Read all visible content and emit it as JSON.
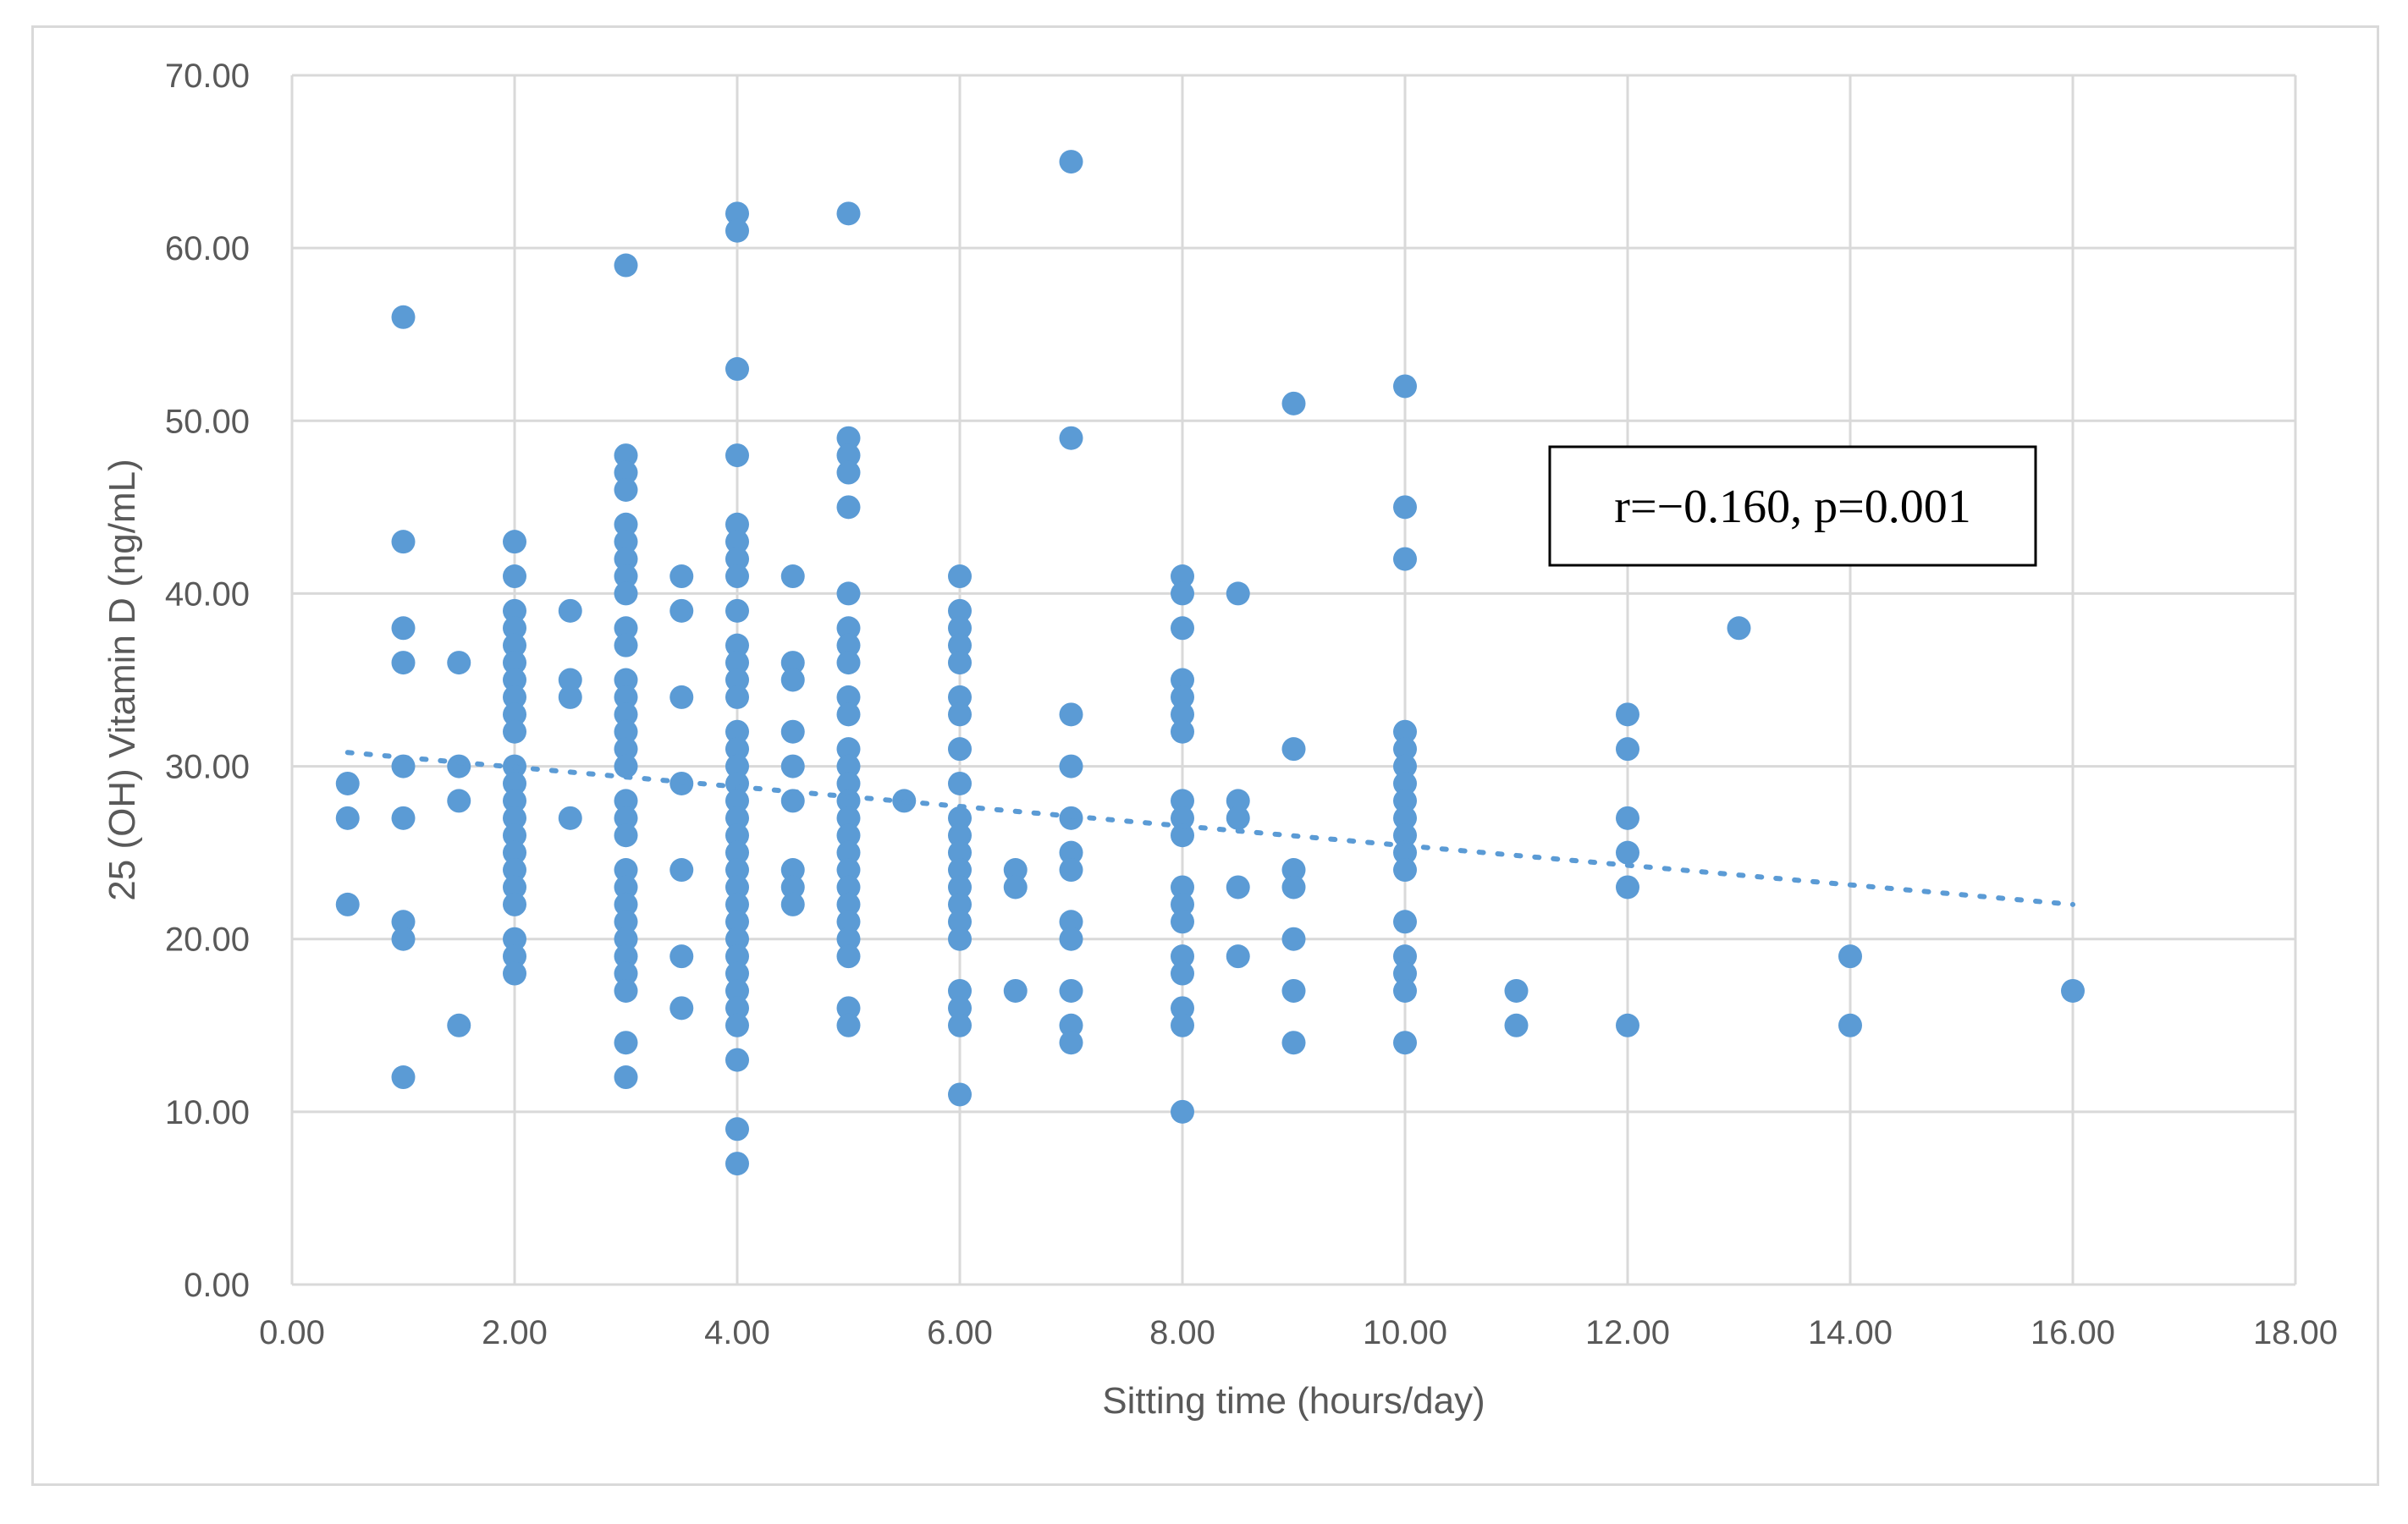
{
  "chart_data": {
    "type": "scatter",
    "title": "",
    "xlabel": "Sitting time (hours/day)",
    "ylabel": "25 (OH) Vitamin D (ng/mL)",
    "xlim": [
      0,
      18
    ],
    "ylim": [
      0,
      70
    ],
    "x_ticks": [
      "0.00",
      "2.00",
      "4.00",
      "6.00",
      "8.00",
      "10.00",
      "12.00",
      "14.00",
      "16.00",
      "18.00"
    ],
    "y_ticks": [
      "0.00",
      "10.00",
      "20.00",
      "30.00",
      "40.00",
      "50.00",
      "60.00",
      "70.00"
    ],
    "grid": true,
    "legend": "none",
    "point_color": "#5b9bd5",
    "gridline_color": "#d9d9d9",
    "annotation": "r=−0.160, p=0.001",
    "trendline": {
      "style": "dotted",
      "x": [
        0.5,
        16
      ],
      "y": [
        30.8,
        22.0
      ]
    },
    "points": [
      [
        0.5,
        29
      ],
      [
        0.5,
        27
      ],
      [
        0.5,
        22
      ],
      [
        1,
        56
      ],
      [
        1,
        43
      ],
      [
        1,
        38
      ],
      [
        1,
        36
      ],
      [
        1,
        30
      ],
      [
        1,
        27
      ],
      [
        1,
        21
      ],
      [
        1,
        20
      ],
      [
        1,
        12
      ],
      [
        1.5,
        36
      ],
      [
        1.5,
        30
      ],
      [
        1.5,
        28
      ],
      [
        1.5,
        15
      ],
      [
        2,
        43
      ],
      [
        2,
        41
      ],
      [
        2,
        39
      ],
      [
        2,
        38
      ],
      [
        2,
        37
      ],
      [
        2,
        36
      ],
      [
        2,
        35
      ],
      [
        2,
        34
      ],
      [
        2,
        33
      ],
      [
        2,
        32
      ],
      [
        2,
        30
      ],
      [
        2,
        29
      ],
      [
        2,
        28
      ],
      [
        2,
        27
      ],
      [
        2,
        26
      ],
      [
        2,
        25
      ],
      [
        2,
        24
      ],
      [
        2,
        23
      ],
      [
        2,
        22
      ],
      [
        2,
        20
      ],
      [
        2,
        19
      ],
      [
        2,
        18
      ],
      [
        2.5,
        39
      ],
      [
        2.5,
        35
      ],
      [
        2.5,
        34
      ],
      [
        2.5,
        27
      ],
      [
        3,
        59
      ],
      [
        3,
        48
      ],
      [
        3,
        47
      ],
      [
        3,
        46
      ],
      [
        3,
        44
      ],
      [
        3,
        43
      ],
      [
        3,
        42
      ],
      [
        3,
        41
      ],
      [
        3,
        40
      ],
      [
        3,
        38
      ],
      [
        3,
        37
      ],
      [
        3,
        35
      ],
      [
        3,
        34
      ],
      [
        3,
        33
      ],
      [
        3,
        32
      ],
      [
        3,
        31
      ],
      [
        3,
        30
      ],
      [
        3,
        28
      ],
      [
        3,
        27
      ],
      [
        3,
        26
      ],
      [
        3,
        24
      ],
      [
        3,
        23
      ],
      [
        3,
        22
      ],
      [
        3,
        21
      ],
      [
        3,
        20
      ],
      [
        3,
        19
      ],
      [
        3,
        18
      ],
      [
        3,
        17
      ],
      [
        3,
        14
      ],
      [
        3,
        12
      ],
      [
        3.5,
        41
      ],
      [
        3.5,
        39
      ],
      [
        3.5,
        34
      ],
      [
        3.5,
        29
      ],
      [
        3.5,
        24
      ],
      [
        3.5,
        19
      ],
      [
        3.5,
        16
      ],
      [
        4,
        62
      ],
      [
        4,
        61
      ],
      [
        4,
        53
      ],
      [
        4,
        48
      ],
      [
        4,
        44
      ],
      [
        4,
        43
      ],
      [
        4,
        42
      ],
      [
        4,
        41
      ],
      [
        4,
        39
      ],
      [
        4,
        37
      ],
      [
        4,
        36
      ],
      [
        4,
        35
      ],
      [
        4,
        34
      ],
      [
        4,
        32
      ],
      [
        4,
        31
      ],
      [
        4,
        30
      ],
      [
        4,
        29
      ],
      [
        4,
        28
      ],
      [
        4,
        27
      ],
      [
        4,
        26
      ],
      [
        4,
        25
      ],
      [
        4,
        24
      ],
      [
        4,
        23
      ],
      [
        4,
        22
      ],
      [
        4,
        21
      ],
      [
        4,
        20
      ],
      [
        4,
        19
      ],
      [
        4,
        18
      ],
      [
        4,
        17
      ],
      [
        4,
        16
      ],
      [
        4,
        15
      ],
      [
        4,
        13
      ],
      [
        4,
        9
      ],
      [
        4,
        7
      ],
      [
        4.5,
        41
      ],
      [
        4.5,
        36
      ],
      [
        4.5,
        35
      ],
      [
        4.5,
        32
      ],
      [
        4.5,
        30
      ],
      [
        4.5,
        28
      ],
      [
        4.5,
        24
      ],
      [
        4.5,
        23
      ],
      [
        4.5,
        22
      ],
      [
        5,
        62
      ],
      [
        5,
        49
      ],
      [
        5,
        48
      ],
      [
        5,
        47
      ],
      [
        5,
        45
      ],
      [
        5,
        40
      ],
      [
        5,
        38
      ],
      [
        5,
        37
      ],
      [
        5,
        36
      ],
      [
        5,
        34
      ],
      [
        5,
        33
      ],
      [
        5,
        31
      ],
      [
        5,
        30
      ],
      [
        5,
        29
      ],
      [
        5,
        28
      ],
      [
        5,
        27
      ],
      [
        5,
        26
      ],
      [
        5,
        25
      ],
      [
        5,
        24
      ],
      [
        5,
        23
      ],
      [
        5,
        22
      ],
      [
        5,
        21
      ],
      [
        5,
        20
      ],
      [
        5,
        19
      ],
      [
        5,
        16
      ],
      [
        5,
        15
      ],
      [
        5.5,
        28
      ],
      [
        6,
        41
      ],
      [
        6,
        39
      ],
      [
        6,
        38
      ],
      [
        6,
        37
      ],
      [
        6,
        36
      ],
      [
        6,
        34
      ],
      [
        6,
        33
      ],
      [
        6,
        31
      ],
      [
        6,
        29
      ],
      [
        6,
        27
      ],
      [
        6,
        26
      ],
      [
        6,
        25
      ],
      [
        6,
        24
      ],
      [
        6,
        23
      ],
      [
        6,
        22
      ],
      [
        6,
        21
      ],
      [
        6,
        20
      ],
      [
        6,
        17
      ],
      [
        6,
        16
      ],
      [
        6,
        15
      ],
      [
        6,
        11
      ],
      [
        6.5,
        24
      ],
      [
        6.5,
        23
      ],
      [
        6.5,
        17
      ],
      [
        7,
        65
      ],
      [
        7,
        49
      ],
      [
        7,
        33
      ],
      [
        7,
        30
      ],
      [
        7,
        27
      ],
      [
        7,
        25
      ],
      [
        7,
        24
      ],
      [
        7,
        21
      ],
      [
        7,
        20
      ],
      [
        7,
        17
      ],
      [
        7,
        15
      ],
      [
        7,
        14
      ],
      [
        8,
        41
      ],
      [
        8,
        40
      ],
      [
        8,
        38
      ],
      [
        8,
        35
      ],
      [
        8,
        34
      ],
      [
        8,
        33
      ],
      [
        8,
        32
      ],
      [
        8,
        28
      ],
      [
        8,
        27
      ],
      [
        8,
        26
      ],
      [
        8,
        23
      ],
      [
        8,
        22
      ],
      [
        8,
        21
      ],
      [
        8,
        19
      ],
      [
        8,
        18
      ],
      [
        8,
        16
      ],
      [
        8,
        15
      ],
      [
        8,
        10
      ],
      [
        8.5,
        40
      ],
      [
        8.5,
        28
      ],
      [
        8.5,
        27
      ],
      [
        8.5,
        23
      ],
      [
        8.5,
        19
      ],
      [
        9,
        51
      ],
      [
        9,
        31
      ],
      [
        9,
        24
      ],
      [
        9,
        23
      ],
      [
        9,
        20
      ],
      [
        9,
        17
      ],
      [
        9,
        14
      ],
      [
        10,
        52
      ],
      [
        10,
        45
      ],
      [
        10,
        42
      ],
      [
        10,
        32
      ],
      [
        10,
        31
      ],
      [
        10,
        30
      ],
      [
        10,
        29
      ],
      [
        10,
        28
      ],
      [
        10,
        27
      ],
      [
        10,
        26
      ],
      [
        10,
        25
      ],
      [
        10,
        24
      ],
      [
        10,
        21
      ],
      [
        10,
        19
      ],
      [
        10,
        18
      ],
      [
        10,
        17
      ],
      [
        10,
        14
      ],
      [
        11,
        17
      ],
      [
        11,
        15
      ],
      [
        12,
        33
      ],
      [
        12,
        31
      ],
      [
        12,
        27
      ],
      [
        12,
        25
      ],
      [
        12,
        23
      ],
      [
        12,
        15
      ],
      [
        13,
        38
      ],
      [
        14,
        19
      ],
      [
        14,
        15
      ],
      [
        16,
        17
      ]
    ]
  }
}
